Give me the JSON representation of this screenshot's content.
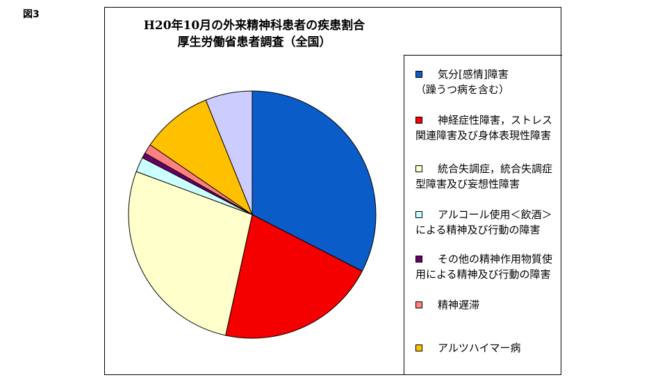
{
  "figure_label": "図3",
  "chart_data": {
    "type": "pie",
    "title_lines": [
      "H20年10月の外来精神科患者の疾患割合",
      "厚生労働省患者調査（全国）"
    ],
    "legend_position": "right",
    "slices": [
      {
        "label": "気分[感情]障害\n（躁うつ病を含む）",
        "value": 33.5,
        "color": "#0A5CC8"
      },
      {
        "label": "神経症性障害，ストレス関連障害及び身体表現性障害",
        "value": 21.5,
        "color": "#F40000"
      },
      {
        "label": "統合失調症，統合失調症型障害及び妄想性障害",
        "value": 28.0,
        "color": "#FFFFCC"
      },
      {
        "label": "アルコール使用＜飲酒＞による精神及び行動の障害",
        "value": 2.0,
        "color": "#CCFFFF"
      },
      {
        "label": "その他の精神作用物質使用による精神及び行動の障害",
        "value": 0.7,
        "color": "#660066"
      },
      {
        "label": "精神遅滞",
        "value": 1.3,
        "color": "#FF8080"
      },
      {
        "label": "アルツハイマー病",
        "value": 9.6,
        "color": "#FFC000"
      },
      {
        "label": "",
        "value": 6.3,
        "color": "#CCCCFF"
      }
    ]
  }
}
